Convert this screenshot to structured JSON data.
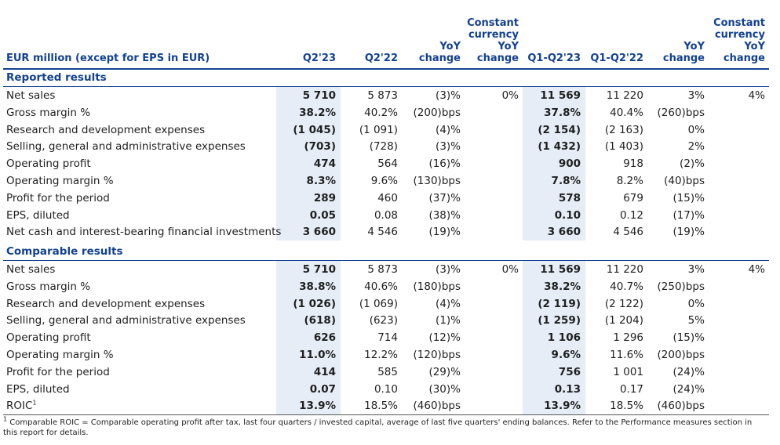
{
  "header": {
    "label": "EUR million (except for EPS in EUR)",
    "columns": [
      [
        "Q2'23"
      ],
      [
        "Q2'22"
      ],
      [
        "YoY",
        "change"
      ],
      [
        "Constant",
        "currency",
        "YoY",
        "change"
      ],
      [
        "Q1-Q2'23"
      ],
      [
        "Q1-Q2'22"
      ],
      [
        "YoY",
        "change"
      ],
      [
        "Constant",
        "currency",
        "YoY",
        "change"
      ]
    ]
  },
  "sections": [
    {
      "title": "Reported results",
      "rows": [
        {
          "label": "Net sales",
          "cells": [
            "5 710",
            "5 873",
            "(3)%",
            "0%",
            "11 569",
            "11 220",
            "3%",
            "4%"
          ]
        },
        {
          "label": "Gross margin %",
          "cells": [
            "38.2%",
            "40.2%",
            "(200)bps",
            null,
            "37.8%",
            "40.4%",
            "(260)bps",
            null
          ]
        },
        {
          "label": "Research and development expenses",
          "cells": [
            "(1 045)",
            "(1 091)",
            "(4)%",
            null,
            "(2 154)",
            "(2 163)",
            "0%",
            null
          ]
        },
        {
          "label": "Selling, general and administrative expenses",
          "cells": [
            "(703)",
            "(728)",
            "(3)%",
            null,
            "(1 432)",
            "(1 403)",
            "2%",
            null
          ]
        },
        {
          "label": "Operating profit",
          "cells": [
            "474",
            "564",
            "(16)%",
            null,
            "900",
            "918",
            "(2)%",
            null
          ]
        },
        {
          "label": "Operating margin %",
          "cells": [
            "8.3%",
            "9.6%",
            "(130)bps",
            null,
            "7.8%",
            "8.2%",
            "(40)bps",
            null
          ]
        },
        {
          "label": "Profit for the period",
          "cells": [
            "289",
            "460",
            "(37)%",
            null,
            "578",
            "679",
            "(15)%",
            null
          ]
        },
        {
          "label": "EPS, diluted",
          "cells": [
            "0.05",
            "0.08",
            "(38)%",
            null,
            "0.10",
            "0.12",
            "(17)%",
            null
          ]
        },
        {
          "label": "Net cash and interest-bearing financial investments",
          "cells": [
            "3 660",
            "4 546",
            "(19)%",
            null,
            "3 660",
            "4 546",
            "(19)%",
            null
          ]
        }
      ]
    },
    {
      "title": "Comparable results",
      "rows": [
        {
          "label": "Net sales",
          "cells": [
            "5 710",
            "5 873",
            "(3)%",
            "0%",
            "11 569",
            "11 220",
            "3%",
            "4%"
          ]
        },
        {
          "label": "Gross margin %",
          "cells": [
            "38.8%",
            "40.6%",
            "(180)bps",
            null,
            "38.2%",
            "40.7%",
            "(250)bps",
            null
          ]
        },
        {
          "label": "Research and development expenses",
          "cells": [
            "(1 026)",
            "(1 069)",
            "(4)%",
            null,
            "(2 119)",
            "(2 122)",
            "0%",
            null
          ]
        },
        {
          "label": "Selling, general and administrative expenses",
          "cells": [
            "(618)",
            "(623)",
            "(1)%",
            null,
            "(1 259)",
            "(1 204)",
            "5%",
            null
          ]
        },
        {
          "label": "Operating profit",
          "cells": [
            "626",
            "714",
            "(12)%",
            null,
            "1 106",
            "1 296",
            "(15)%",
            null
          ]
        },
        {
          "label": "Operating margin %",
          "cells": [
            "11.0%",
            "12.2%",
            "(120)bps",
            null,
            "9.6%",
            "11.6%",
            "(200)bps",
            null
          ]
        },
        {
          "label": "Profit for the period",
          "cells": [
            "414",
            "585",
            "(29)%",
            null,
            "756",
            "1 001",
            "(24)%",
            null
          ]
        },
        {
          "label": "EPS, diluted",
          "cells": [
            "0.07",
            "0.10",
            "(30)%",
            null,
            "0.13",
            "0.17",
            "(24)%",
            null
          ]
        },
        {
          "label": "ROIC",
          "sup": "1",
          "cells": [
            "13.9%",
            "18.5%",
            "(460)bps",
            null,
            "13.9%",
            "18.5%",
            "(460)bps",
            null
          ]
        }
      ]
    }
  ],
  "footnote": {
    "mark": "1",
    "text": "Comparable ROIC = Comparable operating profit after tax, last four quarters / invested capital, average of last five quarters' ending balances. Refer to the Performance measures section in this report for details."
  }
}
